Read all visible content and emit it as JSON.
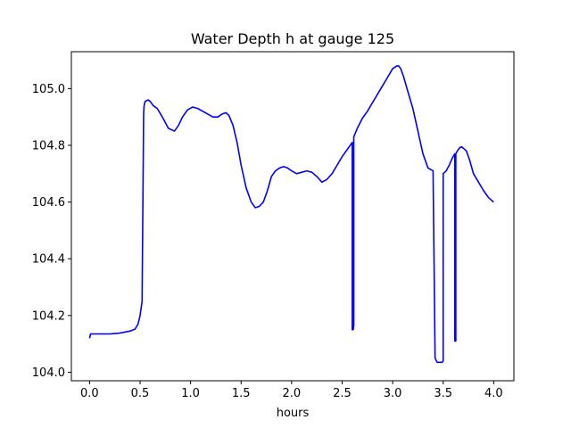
{
  "chart_data": {
    "type": "line",
    "title": "Water Depth h at gauge 125",
    "xlabel": "hours",
    "ylabel": "",
    "xlim": [
      -0.18,
      4.2
    ],
    "ylim": [
      103.97,
      105.13
    ],
    "xticks": [
      0.0,
      0.5,
      1.0,
      1.5,
      2.0,
      2.5,
      3.0,
      3.5,
      4.0
    ],
    "xtick_labels": [
      "0.0",
      "0.5",
      "1.0",
      "1.5",
      "2.0",
      "2.5",
      "3.0",
      "3.5",
      "4.0"
    ],
    "yticks": [
      104.0,
      104.2,
      104.4,
      104.6,
      104.8,
      105.0
    ],
    "ytick_labels": [
      "104.0",
      "104.2",
      "104.4",
      "104.6",
      "104.8",
      "105.0"
    ],
    "grid": false,
    "series": [
      {
        "color": "#0000ff",
        "x": [
          0.0,
          0.01,
          0.05,
          0.1,
          0.2,
          0.3,
          0.4,
          0.45,
          0.48,
          0.5,
          0.52,
          0.535,
          0.54,
          0.55,
          0.58,
          0.6,
          0.63,
          0.67,
          0.72,
          0.78,
          0.84,
          0.88,
          0.92,
          0.97,
          1.02,
          1.07,
          1.12,
          1.17,
          1.22,
          1.27,
          1.31,
          1.35,
          1.38,
          1.42,
          1.46,
          1.5,
          1.55,
          1.6,
          1.64,
          1.68,
          1.72,
          1.76,
          1.8,
          1.84,
          1.88,
          1.92,
          1.96,
          2.0,
          2.05,
          2.1,
          2.15,
          2.2,
          2.25,
          2.3,
          2.35,
          2.4,
          2.45,
          2.5,
          2.55,
          2.6,
          2.6,
          2.61,
          2.615,
          2.615,
          2.65,
          2.7,
          2.75,
          2.8,
          2.85,
          2.9,
          2.95,
          3.0,
          3.04,
          3.06,
          3.08,
          3.11,
          3.15,
          3.2,
          3.25,
          3.3,
          3.35,
          3.4,
          3.42,
          3.42,
          3.44,
          3.47,
          3.49,
          3.5,
          3.5,
          3.53,
          3.56,
          3.59,
          3.615,
          3.615,
          3.625,
          3.625,
          3.64,
          3.66,
          3.68,
          3.7,
          3.73,
          3.76,
          3.8,
          3.85,
          3.9,
          3.95,
          4.0
        ],
        "y": [
          104.12,
          104.135,
          104.135,
          104.135,
          104.135,
          104.138,
          104.145,
          104.152,
          104.17,
          104.2,
          104.25,
          104.91,
          104.94,
          104.955,
          104.96,
          104.955,
          104.94,
          104.93,
          104.9,
          104.86,
          104.85,
          104.87,
          104.9,
          104.925,
          104.935,
          104.93,
          104.92,
          104.91,
          104.9,
          104.9,
          104.91,
          104.915,
          104.905,
          104.87,
          104.81,
          104.73,
          104.65,
          104.6,
          104.58,
          104.585,
          104.6,
          104.64,
          104.69,
          104.71,
          104.72,
          104.725,
          104.72,
          104.71,
          104.7,
          104.705,
          104.71,
          104.705,
          104.69,
          104.67,
          104.68,
          104.7,
          104.73,
          104.76,
          104.785,
          104.81,
          104.15,
          104.15,
          104.165,
          104.83,
          104.86,
          104.895,
          104.92,
          104.95,
          104.98,
          105.01,
          105.04,
          105.07,
          105.08,
          105.08,
          105.07,
          105.04,
          104.99,
          104.93,
          104.85,
          104.77,
          104.72,
          104.71,
          104.05,
          104.05,
          104.035,
          104.035,
          104.035,
          104.04,
          104.7,
          104.71,
          104.73,
          104.755,
          104.77,
          104.11,
          104.11,
          104.77,
          104.78,
          104.79,
          104.795,
          104.79,
          104.78,
          104.75,
          104.7,
          104.67,
          104.64,
          104.615,
          104.6
        ]
      }
    ]
  }
}
